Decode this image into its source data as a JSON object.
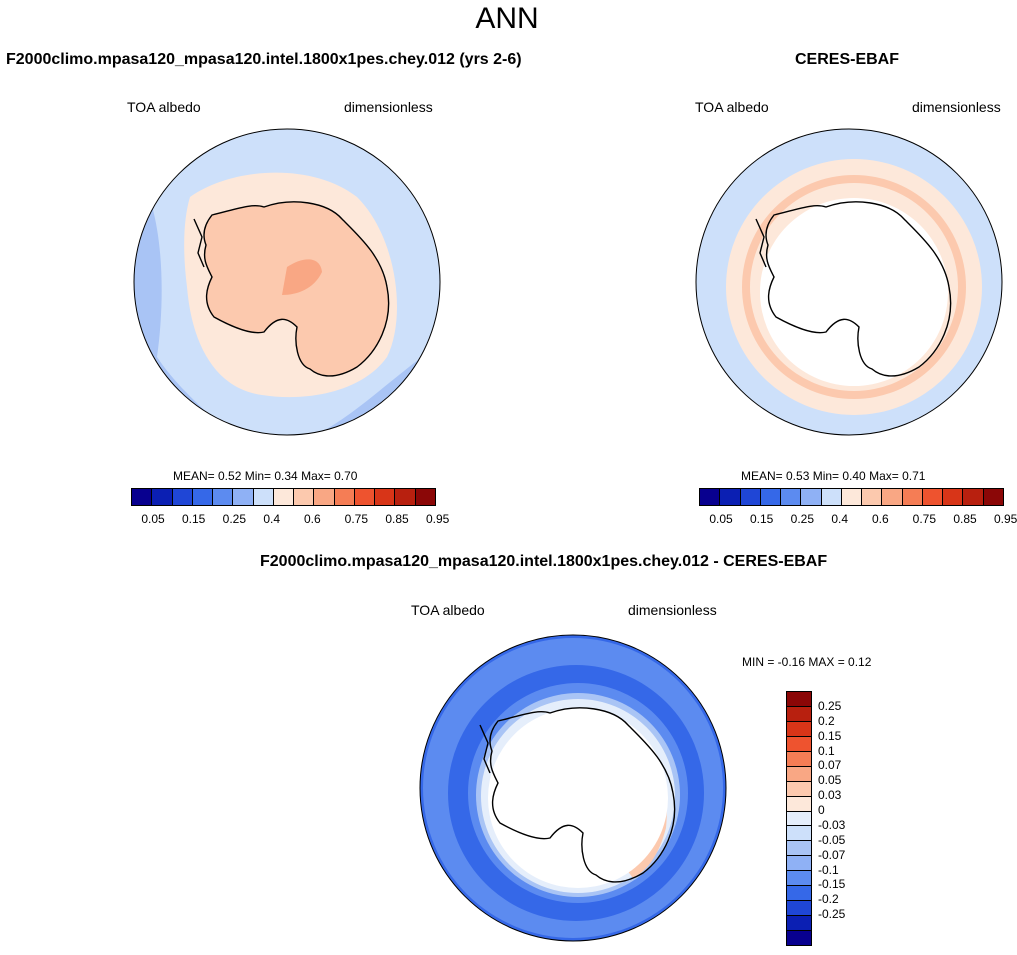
{
  "figure": {
    "title": "ANN"
  },
  "panels": [
    {
      "title": "F2000climo.mpasa120_mpasa120.intel.1800x1pes.chey.012 (yrs 2-6)",
      "variable": "TOA albedo",
      "units": "dimensionless",
      "stats_text": "MEAN=   0.52  Min=    0.34  Max=    0.70",
      "colorbar": {
        "colors": [
          "#08008f",
          "#0b1fb3",
          "#1f46d6",
          "#3568e8",
          "#5c8bf0",
          "#8fb1f5",
          "#cde0fa",
          "#fde8da",
          "#fcc9ae",
          "#f9a784",
          "#f57d55",
          "#ee532f",
          "#d83518",
          "#b8200f",
          "#8b0707"
        ],
        "tick_labels": [
          "0.05",
          "0.15",
          "0.25",
          "0.4",
          "0.6",
          "0.75",
          "0.85",
          "0.95"
        ]
      }
    },
    {
      "title": "CERES-EBAF",
      "variable": "TOA albedo",
      "units": "dimensionless",
      "stats_text": "MEAN=   0.53  Min=    0.40  Max=    0.71",
      "colorbar": {
        "colors": [
          "#08008f",
          "#0b1fb3",
          "#1f46d6",
          "#3568e8",
          "#5c8bf0",
          "#8fb1f5",
          "#cde0fa",
          "#fde8da",
          "#fcc9ae",
          "#f9a784",
          "#f57d55",
          "#ee532f",
          "#d83518",
          "#b8200f",
          "#8b0707"
        ],
        "tick_labels": [
          "0.05",
          "0.15",
          "0.25",
          "0.4",
          "0.6",
          "0.75",
          "0.85",
          "0.95"
        ]
      }
    },
    {
      "title": "F2000climo.mpasa120_mpasa120.intel.1800x1pes.chey.012 - CERES-EBAF",
      "variable": "TOA albedo",
      "units": "dimensionless",
      "stats_text": "MIN =  -0.16 MAX =   0.12",
      "colorbar": {
        "colors": [
          "#8b0707",
          "#b8200f",
          "#d83518",
          "#ee532f",
          "#f57d55",
          "#f9a784",
          "#fcc9ae",
          "#fde8da",
          "#e5eefb",
          "#cde0fa",
          "#a9c4f5",
          "#8fb1f5",
          "#5c8bf0",
          "#3568e8",
          "#1f46d6",
          "#0b1fb3",
          "#08008f"
        ],
        "tick_labels": [
          "0.25",
          "0.2",
          "0.15",
          "0.1",
          "0.07",
          "0.05",
          "0.03",
          "0",
          "-0.03",
          "-0.05",
          "-0.07",
          "-0.1",
          "-0.15",
          "-0.2",
          "-0.25"
        ]
      }
    }
  ]
}
